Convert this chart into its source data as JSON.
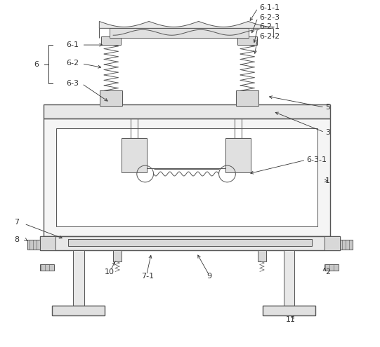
{
  "bg_color": "#ffffff",
  "line_color": "#555555",
  "label_color": "#333333",
  "fig_w": 5.41,
  "fig_h": 4.95,
  "dpi": 100
}
